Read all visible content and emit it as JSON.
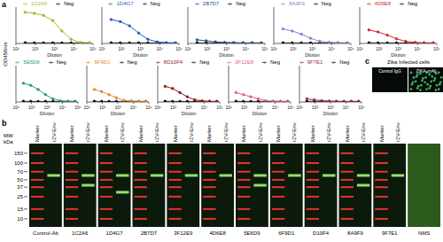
{
  "panel_a": {
    "label": "a",
    "y_label": "OD450nm"
  },
  "chart_data": [
    {
      "type": "line",
      "x": [
        30,
        90,
        270,
        810,
        2430,
        7290,
        21870,
        65610
      ],
      "x_label": "Dilution",
      "xlim": [
        10,
        100000
      ],
      "xticks": [
        {
          "value": 10,
          "label": "10¹"
        },
        {
          "value": 100,
          "label": "10²"
        },
        {
          "value": 1000,
          "label": "10³"
        },
        {
          "value": 10000,
          "label": "10⁴"
        },
        {
          "value": 100000,
          "label": "10⁵"
        }
      ],
      "log": "x",
      "ylim": [
        0,
        3.5
      ],
      "yticks": [
        0,
        1,
        2,
        3
      ],
      "tick_labels": "x",
      "marker": "circle",
      "legend": "top",
      "series": [
        {
          "name": "Neg",
          "color": "#000000",
          "values": [
            0.06,
            0.05,
            0.05,
            0.05,
            0.05,
            0.05,
            0.05,
            0.05
          ]
        },
        {
          "name": "1C2A6",
          "color": "#a8b62c",
          "values": [
            3.0,
            2.9,
            2.7,
            2.2,
            1.2,
            0.4,
            0.1,
            0.05
          ]
        }
      ]
    },
    {
      "type": "line",
      "x": [
        30,
        90,
        270,
        810,
        2430,
        7290,
        21870,
        65610
      ],
      "x_label": "Dilution",
      "xlim": [
        10,
        100000
      ],
      "xticks": [
        {
          "value": 10,
          "label": "10¹"
        },
        {
          "value": 100,
          "label": "10²"
        },
        {
          "value": 1000,
          "label": "10³"
        },
        {
          "value": 10000,
          "label": "10⁴"
        },
        {
          "value": 100000,
          "label": "10⁵"
        }
      ],
      "log": "x",
      "ylim": [
        0,
        3.5
      ],
      "yticks": [
        0,
        1,
        2,
        3
      ],
      "tick_labels": "x",
      "marker": "circle",
      "legend": "top",
      "series": [
        {
          "name": "Neg",
          "color": "#000000",
          "values": [
            0.06,
            0.05,
            0.05,
            0.05,
            0.05,
            0.05,
            0.05,
            0.05
          ]
        },
        {
          "name": "1D4G7",
          "color": "#1f5fbf",
          "values": [
            2.3,
            2.1,
            1.7,
            1.0,
            0.4,
            0.15,
            0.07,
            0.05
          ]
        }
      ]
    },
    {
      "type": "line",
      "x": [
        30,
        90,
        270,
        810,
        2430,
        7290,
        21870,
        65610
      ],
      "x_label": "Dilution",
      "xlim": [
        10,
        100000
      ],
      "xticks": [
        {
          "value": 10,
          "label": "10¹"
        },
        {
          "value": 100,
          "label": "10²"
        },
        {
          "value": 1000,
          "label": "10³"
        },
        {
          "value": 10000,
          "label": "10⁴"
        },
        {
          "value": 100000,
          "label": "10⁵"
        }
      ],
      "log": "x",
      "ylim": [
        0,
        3.5
      ],
      "yticks": [
        0,
        1,
        2,
        3
      ],
      "tick_labels": "x",
      "marker": "circle",
      "legend": "top",
      "series": [
        {
          "name": "Neg",
          "color": "#000000",
          "values": [
            0.06,
            0.05,
            0.05,
            0.05,
            0.05,
            0.05,
            0.05,
            0.05
          ]
        },
        {
          "name": "2B7D7",
          "color": "#2b4b8c",
          "values": [
            0.35,
            0.25,
            0.15,
            0.1,
            0.07,
            0.05,
            0.05,
            0.05
          ]
        }
      ]
    },
    {
      "type": "line",
      "x": [
        30,
        90,
        270,
        810,
        2430,
        7290,
        21870,
        65610
      ],
      "x_label": "Dilution",
      "xlim": [
        10,
        100000
      ],
      "xticks": [
        {
          "value": 10,
          "label": "10¹"
        },
        {
          "value": 100,
          "label": "10²"
        },
        {
          "value": 1000,
          "label": "10³"
        },
        {
          "value": 10000,
          "label": "10⁴"
        },
        {
          "value": 100000,
          "label": "10⁵"
        }
      ],
      "log": "x",
      "ylim": [
        0,
        3.5
      ],
      "yticks": [
        0,
        1,
        2,
        3
      ],
      "tick_labels": "x",
      "marker": "circle",
      "legend": "top",
      "series": [
        {
          "name": "Neg",
          "color": "#000000",
          "values": [
            0.06,
            0.05,
            0.05,
            0.05,
            0.05,
            0.05,
            0.05,
            0.05
          ]
        },
        {
          "name": "8A9F9",
          "color": "#8b7fc8",
          "values": [
            1.4,
            1.2,
            0.9,
            0.5,
            0.2,
            0.1,
            0.05,
            0.05
          ]
        }
      ]
    },
    {
      "type": "line",
      "x": [
        30,
        90,
        270,
        810,
        2430,
        7290,
        21870,
        65610
      ],
      "x_label": "Dilution",
      "xlim": [
        10,
        100000
      ],
      "xticks": [
        {
          "value": 10,
          "label": "10¹"
        },
        {
          "value": 100,
          "label": "10²"
        },
        {
          "value": 1000,
          "label": "10³"
        },
        {
          "value": 10000,
          "label": "10⁴"
        },
        {
          "value": 100000,
          "label": "10⁵"
        }
      ],
      "log": "x",
      "ylim": [
        0,
        3.5
      ],
      "yticks": [
        0,
        1,
        2,
        3
      ],
      "tick_labels": "x",
      "marker": "circle",
      "legend": "top",
      "series": [
        {
          "name": "Neg",
          "color": "#000000",
          "values": [
            0.06,
            0.05,
            0.05,
            0.05,
            0.05,
            0.05,
            0.05,
            0.05
          ]
        },
        {
          "name": "4D6E8",
          "color": "#d9232e",
          "values": [
            1.3,
            1.1,
            0.8,
            0.45,
            0.2,
            0.1,
            0.05,
            0.05
          ]
        }
      ]
    },
    {
      "type": "line",
      "x": [
        30,
        90,
        270,
        810,
        2430,
        7290,
        21870,
        65610
      ],
      "x_label": "Dilution",
      "xlim": [
        10,
        100000
      ],
      "xticks": [
        {
          "value": 10,
          "label": "10¹"
        },
        {
          "value": 100,
          "label": "10²"
        },
        {
          "value": 1000,
          "label": "10³"
        },
        {
          "value": 10000,
          "label": "10⁴"
        },
        {
          "value": 100000,
          "label": "10⁵"
        }
      ],
      "log": "x",
      "ylim": [
        0,
        3.5
      ],
      "yticks": [
        0,
        1,
        2,
        3
      ],
      "tick_labels": "x",
      "marker": "circle",
      "legend": "top",
      "series": [
        {
          "name": "Neg",
          "color": "#000000",
          "values": [
            0.06,
            0.05,
            0.05,
            0.05,
            0.05,
            0.05,
            0.05,
            0.05
          ]
        },
        {
          "name": "5E6D9",
          "color": "#1e9e73",
          "values": [
            1.8,
            1.6,
            1.2,
            0.7,
            0.3,
            0.1,
            0.06,
            0.05
          ]
        }
      ]
    },
    {
      "type": "line",
      "x": [
        30,
        90,
        270,
        810,
        2430,
        7290,
        21870,
        65610
      ],
      "x_label": "Dilution",
      "xlim": [
        10,
        100000
      ],
      "xticks": [
        {
          "value": 10,
          "label": "10¹"
        },
        {
          "value": 100,
          "label": "10²"
        },
        {
          "value": 1000,
          "label": "10³"
        },
        {
          "value": 10000,
          "label": "10⁴"
        },
        {
          "value": 100000,
          "label": "10⁵"
        }
      ],
      "log": "x",
      "ylim": [
        0,
        3.5
      ],
      "yticks": [
        0,
        1,
        2,
        3
      ],
      "tick_labels": "x",
      "marker": "circle",
      "legend": "top",
      "series": [
        {
          "name": "Neg",
          "color": "#000000",
          "values": [
            0.06,
            0.05,
            0.05,
            0.05,
            0.05,
            0.05,
            0.05,
            0.05
          ]
        },
        {
          "name": "6F9D1",
          "color": "#e8852b",
          "values": [
            1.2,
            1.0,
            0.7,
            0.4,
            0.15,
            0.08,
            0.05,
            0.05
          ]
        }
      ]
    },
    {
      "type": "line",
      "x": [
        30,
        90,
        270,
        810,
        2430,
        7290,
        21870,
        65610
      ],
      "x_label": "Dilution",
      "xlim": [
        10,
        100000
      ],
      "xticks": [
        {
          "value": 10,
          "label": "10¹"
        },
        {
          "value": 100,
          "label": "10²"
        },
        {
          "value": 1000,
          "label": "10³"
        },
        {
          "value": 10000,
          "label": "10⁴"
        },
        {
          "value": 100000,
          "label": "10⁵"
        }
      ],
      "log": "x",
      "ylim": [
        0,
        3.5
      ],
      "yticks": [
        0,
        1,
        2,
        3
      ],
      "tick_labels": "x",
      "marker": "circle",
      "legend": "top",
      "series": [
        {
          "name": "Neg",
          "color": "#000000",
          "values": [
            0.06,
            0.05,
            0.05,
            0.05,
            0.05,
            0.05,
            0.05,
            0.05
          ]
        },
        {
          "name": "8D10F4",
          "color": "#8b1a1a",
          "values": [
            1.5,
            1.3,
            0.9,
            0.5,
            0.2,
            0.1,
            0.05,
            0.05
          ]
        }
      ]
    },
    {
      "type": "line",
      "x": [
        30,
        90,
        270,
        810,
        2430,
        7290,
        21870,
        65610
      ],
      "x_label": "Dilution",
      "xlim": [
        10,
        100000
      ],
      "xticks": [
        {
          "value": 10,
          "label": "10¹"
        },
        {
          "value": 100,
          "label": "10²"
        },
        {
          "value": 1000,
          "label": "10³"
        },
        {
          "value": 10000,
          "label": "10⁴"
        },
        {
          "value": 100000,
          "label": "10⁵"
        }
      ],
      "log": "x",
      "ylim": [
        0,
        3.5
      ],
      "yticks": [
        0,
        1,
        2,
        3
      ],
      "tick_labels": "x",
      "marker": "circle",
      "legend": "top",
      "series": [
        {
          "name": "Neg",
          "color": "#000000",
          "values": [
            0.06,
            0.05,
            0.05,
            0.05,
            0.05,
            0.05,
            0.05,
            0.05
          ]
        },
        {
          "name": "3F12E8",
          "color": "#e05a9c",
          "values": [
            0.9,
            0.7,
            0.5,
            0.3,
            0.12,
            0.07,
            0.05,
            0.05
          ]
        }
      ]
    },
    {
      "type": "line",
      "x": [
        30,
        90,
        270,
        810,
        2430,
        7290,
        21870,
        65610
      ],
      "x_label": "Dilution",
      "xlim": [
        10,
        100000
      ],
      "xticks": [
        {
          "value": 10,
          "label": "10¹"
        },
        {
          "value": 100,
          "label": "10²"
        },
        {
          "value": 1000,
          "label": "10³"
        },
        {
          "value": 10000,
          "label": "10⁴"
        },
        {
          "value": 100000,
          "label": "10⁵"
        }
      ],
      "log": "x",
      "ylim": [
        0,
        3.5
      ],
      "yticks": [
        0,
        1,
        2,
        3
      ],
      "tick_labels": "x",
      "marker": "circle",
      "legend": "top",
      "series": [
        {
          "name": "Neg",
          "color": "#000000",
          "values": [
            0.06,
            0.05,
            0.05,
            0.05,
            0.05,
            0.05,
            0.05,
            0.05
          ]
        },
        {
          "name": "9F7E1",
          "color": "#9b2a3a",
          "values": [
            0.3,
            0.2,
            0.12,
            0.08,
            0.06,
            0.05,
            0.05,
            0.05
          ]
        }
      ]
    }
  ],
  "panel_b": {
    "label": "b",
    "mw_title": [
      "MW",
      "kDa"
    ],
    "mw_markers": [
      150,
      100,
      70,
      50,
      37,
      25,
      15,
      10
    ],
    "blots": [
      {
        "label": "Control-Ab",
        "lanes": [
          "Marker",
          "rZV-Env"
        ],
        "bands_kda": [
          60
        ]
      },
      {
        "label": "1C2A6",
        "lanes": [
          "Marker",
          "rZV-Env"
        ],
        "bands_kda": [
          60,
          40
        ]
      },
      {
        "label": "1D4G7",
        "lanes": [
          "Marker",
          "rZV-Env"
        ],
        "bands_kda": [
          60,
          30
        ]
      },
      {
        "label": "2B7D7",
        "lanes": [
          "Marker",
          "rZV-Env"
        ],
        "bands_kda": [
          60
        ]
      },
      {
        "label": "3F12E9",
        "lanes": [
          "Marker",
          "rZV-Env"
        ],
        "bands_kda": [
          60
        ]
      },
      {
        "label": "4D6E8",
        "lanes": [
          "Marker",
          "rZV-Env"
        ],
        "bands_kda": [
          60
        ]
      },
      {
        "label": "5E6D9",
        "lanes": [
          "Marker",
          "rZV-Env"
        ],
        "bands_kda": [
          60,
          40
        ]
      },
      {
        "label": "6F9D1",
        "lanes": [
          "Marker",
          "rZV-Env"
        ],
        "bands_kda": [
          60
        ]
      },
      {
        "label": "D10F4",
        "lanes": [
          "Marker",
          "rZV-Env"
        ],
        "bands_kda": [
          60
        ]
      },
      {
        "label": "8A9F9",
        "lanes": [
          "Marker",
          "rZV-Env"
        ],
        "bands_kda": [
          60,
          40
        ]
      },
      {
        "label": "9F7E1",
        "lanes": [
          "Marker",
          "rZV-Env"
        ],
        "bands_kda": [
          60
        ]
      },
      {
        "label": "NMS",
        "lanes": [],
        "bands_kda": []
      }
    ]
  },
  "panel_c": {
    "label": "c",
    "title": "Zika Infected cells",
    "images": [
      "Control IgG",
      "ZIKA-mAb"
    ]
  }
}
